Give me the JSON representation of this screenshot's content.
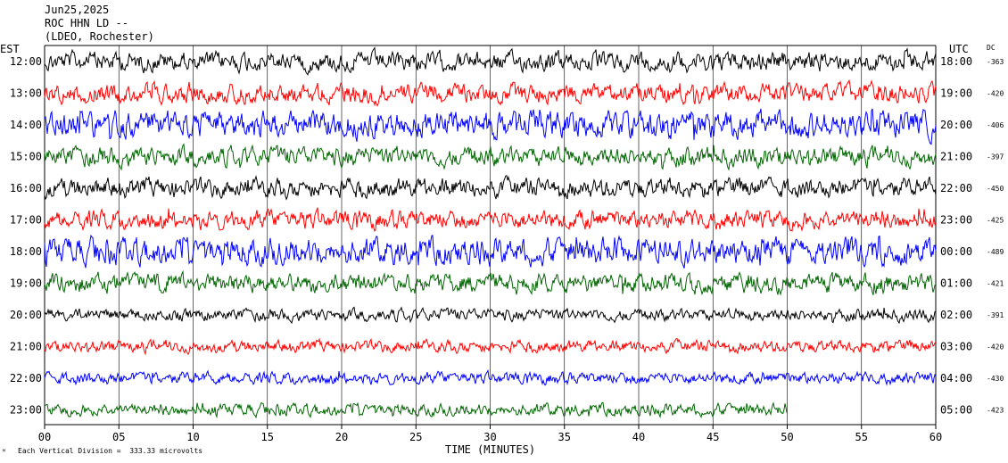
{
  "header": {
    "date": "Jun25,2025",
    "station": "ROC HHN LD --",
    "network": "(LDEO, Rochester)"
  },
  "axes": {
    "left_label": "EST",
    "right_label": "UTC",
    "dc_label": "DC",
    "xlabel": "TIME (MINUTES)",
    "footer": "Each Vertical Division =  333.33 microvolts"
  },
  "colors": {
    "black": "#000000",
    "red": "#ff0000",
    "blue": "#0000ff",
    "green": "#006600",
    "grid": "#000000"
  },
  "chart_data": {
    "type": "line",
    "title": "ROC HHN LD --",
    "xlabel": "TIME (MINUTES)",
    "ylabel": "",
    "xlim": [
      0,
      60
    ],
    "x_ticks": [
      "00",
      "05",
      "10",
      "15",
      "20",
      "25",
      "30",
      "35",
      "40",
      "45",
      "50",
      "55",
      "60"
    ],
    "series": [
      {
        "est": "12:00",
        "utc": "18:00",
        "dc": "-363",
        "color": "black",
        "end_minute": 60,
        "amplitude": "medium"
      },
      {
        "est": "13:00",
        "utc": "19:00",
        "dc": "-420",
        "color": "red",
        "end_minute": 60,
        "amplitude": "medium"
      },
      {
        "est": "14:00",
        "utc": "20:00",
        "dc": "-406",
        "color": "blue",
        "end_minute": 60,
        "amplitude": "high"
      },
      {
        "est": "15:00",
        "utc": "21:00",
        "dc": "-397",
        "color": "green",
        "end_minute": 60,
        "amplitude": "medium"
      },
      {
        "est": "16:00",
        "utc": "22:00",
        "dc": "-450",
        "color": "black",
        "end_minute": 60,
        "amplitude": "medium"
      },
      {
        "est": "17:00",
        "utc": "23:00",
        "dc": "-425",
        "color": "red",
        "end_minute": 60,
        "amplitude": "medium"
      },
      {
        "est": "18:00",
        "utc": "00:00",
        "dc": "-489",
        "color": "blue",
        "end_minute": 60,
        "amplitude": "high"
      },
      {
        "est": "19:00",
        "utc": "01:00",
        "dc": "-421",
        "color": "green",
        "end_minute": 60,
        "amplitude": "medium"
      },
      {
        "est": "20:00",
        "utc": "02:00",
        "dc": "-391",
        "color": "black",
        "end_minute": 60,
        "amplitude": "low"
      },
      {
        "est": "21:00",
        "utc": "03:00",
        "dc": "-420",
        "color": "red",
        "end_minute": 60,
        "amplitude": "low"
      },
      {
        "est": "22:00",
        "utc": "04:00",
        "dc": "-430",
        "color": "blue",
        "end_minute": 60,
        "amplitude": "low"
      },
      {
        "est": "23:00",
        "utc": "05:00",
        "dc": "-423",
        "color": "green",
        "end_minute": 50,
        "amplitude": "low"
      }
    ]
  }
}
